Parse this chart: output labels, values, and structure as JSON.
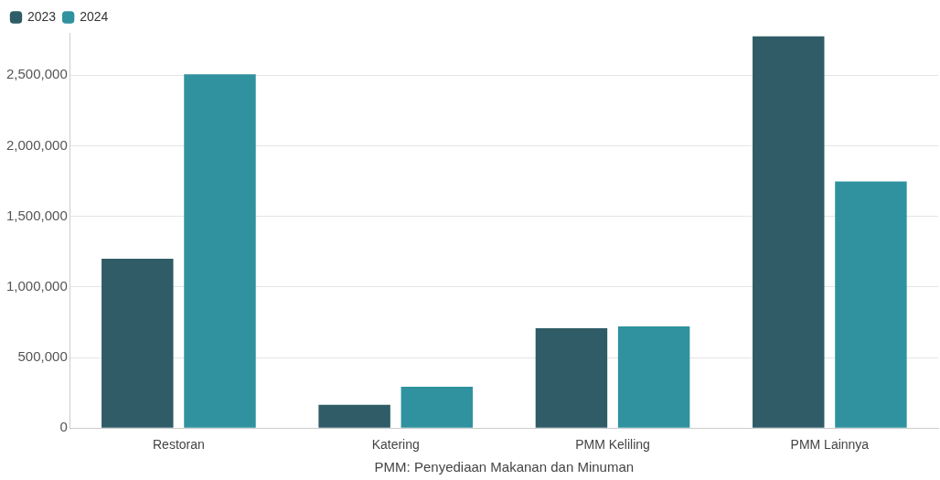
{
  "chart_data": {
    "type": "bar",
    "xlabel": "PMM: Penyediaan Makanan dan Minuman",
    "categories": [
      "Restoran",
      "Katering",
      "PMM Keliling",
      "PMM Lainnya"
    ],
    "series": [
      {
        "name": "2023",
        "color": "#2f5c66",
        "values": [
          1200000,
          165000,
          707000,
          2775000
        ]
      },
      {
        "name": "2024",
        "color": "#2f929e",
        "values": [
          2507000,
          293000,
          720000,
          1747000
        ]
      }
    ],
    "ylim": [
      0,
      2800000
    ],
    "yticks": [
      {
        "value": 0,
        "label": "0"
      },
      {
        "value": 500000,
        "label": "500,000"
      },
      {
        "value": 1000000,
        "label": "1,000,000"
      },
      {
        "value": 1500000,
        "label": "1,500,000"
      },
      {
        "value": 2000000,
        "label": "2,000,000"
      },
      {
        "value": 2500000,
        "label": "2,500,000"
      }
    ],
    "grid": "y",
    "legend": "top left"
  }
}
